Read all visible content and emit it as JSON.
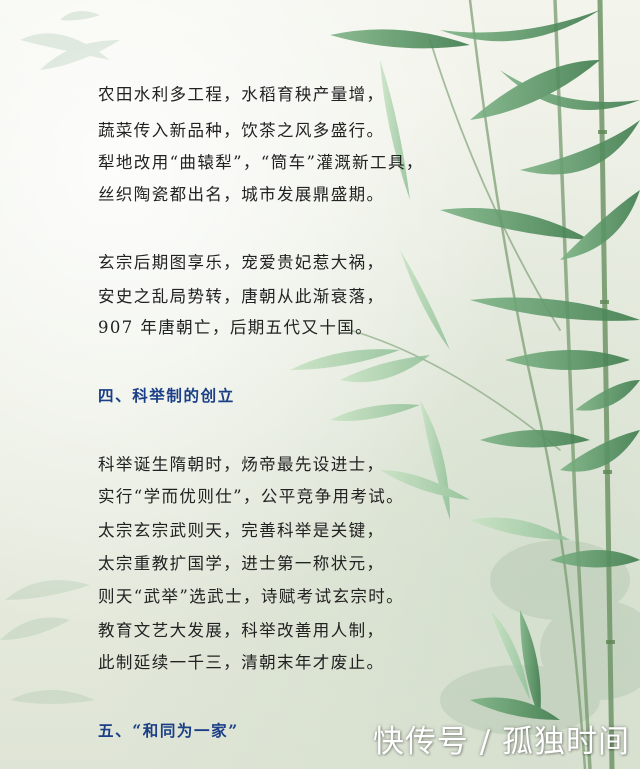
{
  "section3": {
    "lines": [
      "农田水利多工程，水稻育秧产量增，",
      "蔬菜传入新品种，饮茶之风多盛行。",
      "犁地改用“曲辕犁”，“筒车”灌溉新工具，",
      "丝织陶瓷都出名，城市发展鼎盛期。"
    ],
    "decline_lines": [
      "玄宗后期图享乐，宠爱贵妃惹大祸，",
      "安史之乱局势转，唐朝从此渐衰落，",
      "907 年唐朝亡，后期五代又十国。"
    ]
  },
  "section4": {
    "heading": "四、科举制的创立",
    "lines": [
      "科举诞生隋朝时，炀帝最先设进士，",
      "实行“学而优则仕”，公平竞争用考试。",
      "太宗玄宗武则天，完善科举是关键，",
      "太宗重教扩国学，进士第一称状元，",
      "则天“武举”选武士，诗赋考试玄宗时。",
      "教育文艺大发展，科举改善用人制，",
      "此制延续一千三，清朝末年才废止。"
    ]
  },
  "section5": {
    "heading": "五、“和同为一家”"
  },
  "watermark": "快传号 / 孤独时间",
  "colors": {
    "heading": "#1b3f86",
    "text": "#222222",
    "leaf_dark": "#4f8a5a",
    "leaf_light": "#a9cfa6",
    "stem": "#6f9466"
  }
}
